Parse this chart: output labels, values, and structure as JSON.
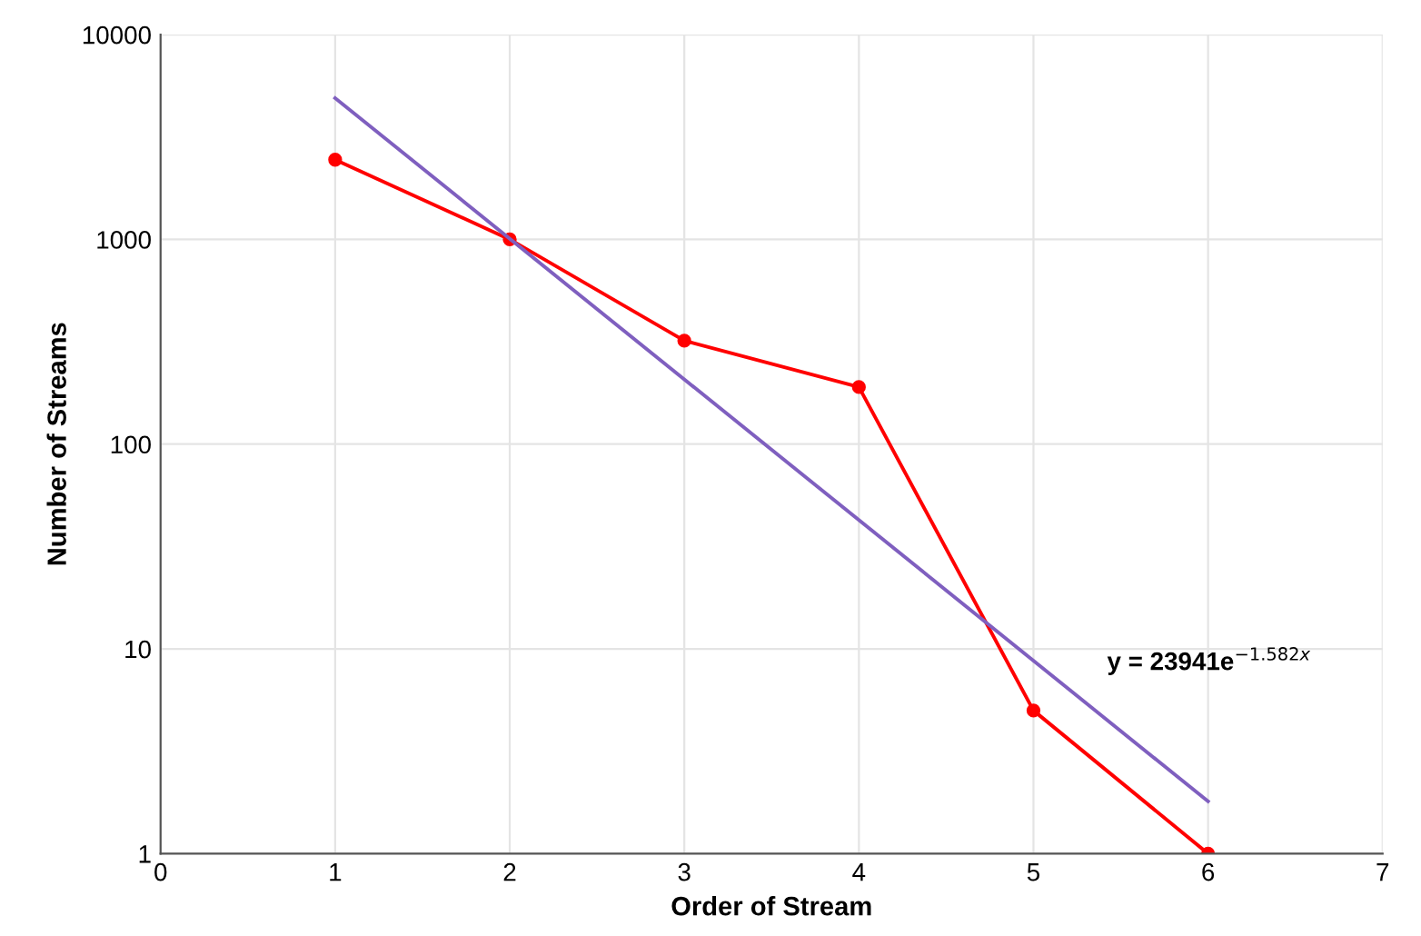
{
  "chart_data": {
    "type": "line",
    "xlabel": "Order of Stream",
    "ylabel": "Number of Streams",
    "log": "y",
    "x": [
      1,
      2,
      3,
      4,
      5,
      6
    ],
    "series": [
      {
        "color": "#ff0000",
        "marker": "circle",
        "values": [
          2450,
          1000,
          320,
          190,
          5,
          1
        ]
      },
      {
        "color": "#7f5fbf",
        "marker": "none",
        "x": [
          1,
          6
        ],
        "values": [
          4900,
          1.8
        ]
      }
    ],
    "annotations": [
      "y = 23941e$^{−1.582x}$"
    ],
    "xlim": [
      0,
      7
    ],
    "xticks": [
      0,
      1,
      2,
      3,
      4,
      5,
      6,
      7
    ],
    "ylim": [
      1,
      10000
    ],
    "yticks": [
      1,
      10,
      100,
      1000,
      10000
    ],
    "grid": true,
    "legend": false
  }
}
